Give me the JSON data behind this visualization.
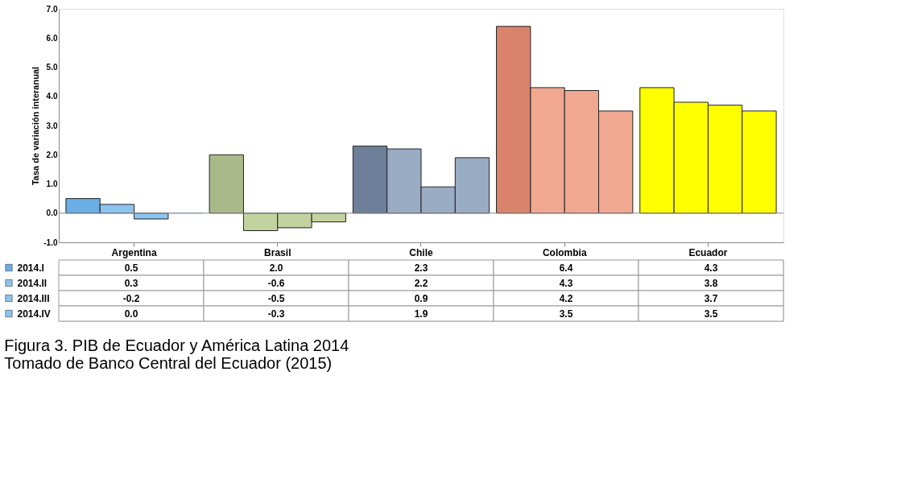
{
  "chart_data": {
    "type": "bar",
    "ylabel": "Tasa de variación interanual",
    "categories": [
      "Argentina",
      "Brasil",
      "Chile",
      "Colombia",
      "Ecuador"
    ],
    "series": [
      {
        "name": "2014.I",
        "colors": [
          "#6aaee6",
          "#a9b98a",
          "#6e7f99",
          "#d9836b",
          "#ffff00"
        ],
        "values": [
          0.5,
          2.0,
          2.3,
          6.4,
          4.3
        ],
        "value_labels": [
          "0.5",
          "2.0",
          "2.3",
          "6.4",
          "4.3"
        ]
      },
      {
        "name": "2014.II",
        "colors": [
          "#8cc4f0",
          "#c3d3a0",
          "#9aabc4",
          "#f0a890",
          "#ffff00"
        ],
        "values": [
          0.3,
          -0.6,
          2.2,
          4.3,
          3.8
        ],
        "value_labels": [
          "0.3",
          "-0.6",
          "2.2",
          "4.3",
          "3.8"
        ]
      },
      {
        "name": "2014.III",
        "colors": [
          "#8cc4f0",
          "#c3d3a0",
          "#9aabc4",
          "#f0a890",
          "#ffff00"
        ],
        "values": [
          -0.2,
          -0.5,
          0.9,
          4.2,
          3.7
        ],
        "value_labels": [
          "-0.2",
          "-0.5",
          "0.9",
          "4.2",
          "3.7"
        ]
      },
      {
        "name": "2014.IV",
        "colors": [
          "#8cc4f0",
          "#c3d3a0",
          "#9aabc4",
          "#f0a890",
          "#ffff00"
        ],
        "values": [
          0.0,
          -0.3,
          1.9,
          3.5,
          3.5
        ],
        "value_labels": [
          "0.0",
          "-0.3",
          "1.9",
          "3.5",
          "3.5"
        ]
      }
    ],
    "ylim": [
      -1,
      7
    ],
    "yticks": [
      {
        "value": -1,
        "label": "-1.0"
      },
      {
        "value": 0,
        "label": "0.0"
      },
      {
        "value": 1,
        "label": "1.0"
      },
      {
        "value": 2,
        "label": "2.0"
      },
      {
        "value": 3,
        "label": "3.0"
      },
      {
        "value": 4,
        "label": "4.0"
      },
      {
        "value": 5,
        "label": "5.0"
      },
      {
        "value": 6,
        "label": "6.0"
      },
      {
        "value": 7,
        "label": "7.0"
      }
    ],
    "legend": "bottom left",
    "ref_lines": [
      {
        "axis": "y",
        "value": 0
      }
    ],
    "annotations": [
      "Figura 3. PIB de Ecuador y América Latina 2014",
      "Tomado de Banco Central del Ecuador (2015)"
    ]
  }
}
